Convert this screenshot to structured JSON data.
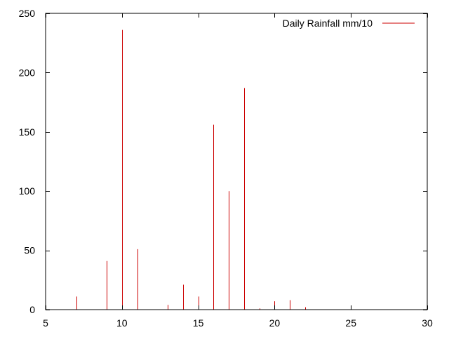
{
  "chart_data": {
    "type": "bar",
    "style": "impulses",
    "title": "",
    "xlabel": "",
    "ylabel": "",
    "xlim": [
      5,
      30
    ],
    "ylim": [
      0,
      250
    ],
    "xticks": [
      5,
      10,
      15,
      20,
      25,
      30
    ],
    "yticks": [
      0,
      50,
      100,
      150,
      200,
      250
    ],
    "grid": false,
    "legend_position": "top-right",
    "series": [
      {
        "name": "Daily Rainfall mm/10",
        "color": "#cc0000",
        "x": [
          7,
          9,
          10,
          11,
          13,
          14,
          15,
          16,
          17,
          18,
          19,
          20,
          21,
          22
        ],
        "values": [
          11,
          41,
          236,
          51,
          4,
          21,
          11,
          156,
          100,
          187,
          1,
          7,
          8,
          2
        ]
      }
    ]
  }
}
